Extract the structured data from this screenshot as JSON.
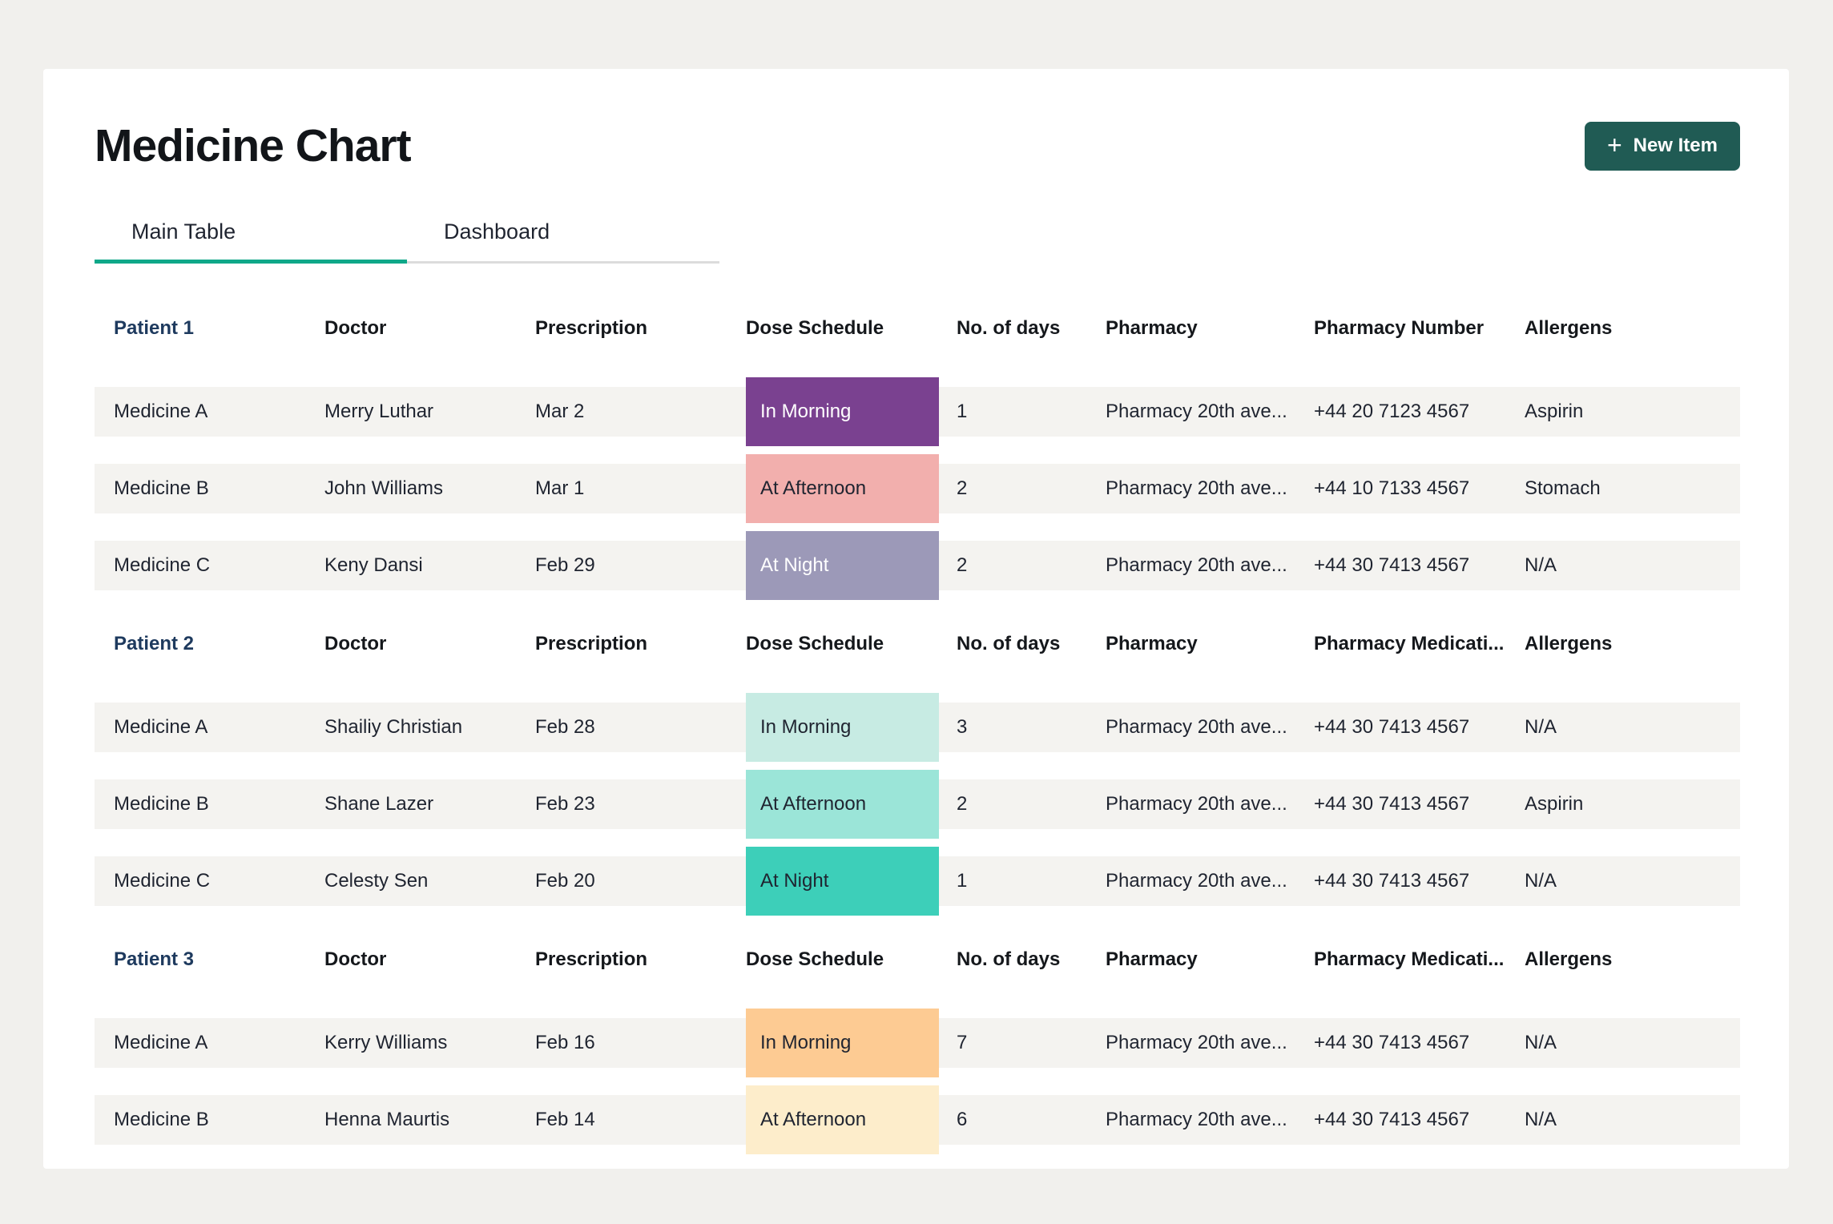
{
  "app": {
    "title": "Medicine Chart",
    "new_item": {
      "label": "New Item",
      "icon": "+"
    }
  },
  "tabs": [
    {
      "label": "Main Table",
      "active": true
    },
    {
      "label": "Dashboard",
      "active": false
    }
  ],
  "colors": {
    "page_bg": "#F1F0ED",
    "card_bg": "#FFFFFF",
    "row_stripe": "#F4F3F0",
    "accent_teal": "#0FA889",
    "button_bg": "#205B54",
    "patient_link": "#1E3A5E",
    "tab_inactive_line": "#DCDCDC"
  },
  "tables": [
    {
      "patient": "Patient 1",
      "columns": [
        "Doctor",
        "Prescription",
        "Dose Schedule",
        "No. of days",
        "Pharmacy",
        "Pharmacy Number",
        "Allergens"
      ],
      "rows": [
        {
          "medicine": "Medicine A",
          "doctor": "Merry Luthar",
          "prescription": "Mar 2",
          "dose": "In Morning",
          "dose_bg": "#7A4190",
          "dose_fg": "#FFFFFF",
          "days": "1",
          "pharmacy": "Pharmacy 20th ave...",
          "phone": "+44 20 7123 4567",
          "allergens": "Aspirin"
        },
        {
          "medicine": "Medicine B",
          "doctor": "John Williams",
          "prescription": "Mar 1",
          "dose": "At Afternoon",
          "dose_bg": "#F2AFAD",
          "dose_fg": "#1F2430",
          "days": "2",
          "pharmacy": "Pharmacy 20th ave...",
          "phone": "+44 10 7133 4567",
          "allergens": "Stomach"
        },
        {
          "medicine": "Medicine C",
          "doctor": "Keny Dansi",
          "prescription": "Feb 29",
          "dose": "At Night",
          "dose_bg": "#9C99B8",
          "dose_fg": "#FFFFFF",
          "days": "2",
          "pharmacy": "Pharmacy 20th ave...",
          "phone": "+44 30 7413 4567",
          "allergens": "N/A"
        }
      ]
    },
    {
      "patient": "Patient 2",
      "columns": [
        "Doctor",
        "Prescription",
        "Dose Schedule",
        "No. of days",
        "Pharmacy",
        "Pharmacy Medicati...",
        "Allergens"
      ],
      "rows": [
        {
          "medicine": "Medicine A",
          "doctor": "Shailiy Christian",
          "prescription": "Feb 28",
          "dose": "In Morning",
          "dose_bg": "#C7EBE3",
          "dose_fg": "#1F2430",
          "days": "3",
          "pharmacy": "Pharmacy 20th ave...",
          "phone": "+44 30 7413 4567",
          "allergens": "N/A"
        },
        {
          "medicine": "Medicine B",
          "doctor": "Shane Lazer",
          "prescription": "Feb 23",
          "dose": "At Afternoon",
          "dose_bg": "#9BE5D8",
          "dose_fg": "#1F2430",
          "days": "2",
          "pharmacy": "Pharmacy 20th ave...",
          "phone": "+44 30 7413 4567",
          "allergens": "Aspirin"
        },
        {
          "medicine": "Medicine C",
          "doctor": "Celesty Sen",
          "prescription": "Feb 20",
          "dose": "At Night",
          "dose_bg": "#3DCFB9",
          "dose_fg": "#1F2430",
          "days": "1",
          "pharmacy": "Pharmacy 20th ave...",
          "phone": "+44 30 7413 4567",
          "allergens": "N/A"
        }
      ]
    },
    {
      "patient": "Patient 3",
      "columns": [
        "Doctor",
        "Prescription",
        "Dose Schedule",
        "No. of days",
        "Pharmacy",
        "Pharmacy Medicati...",
        "Allergens"
      ],
      "rows": [
        {
          "medicine": "Medicine A",
          "doctor": "Kerry Williams",
          "prescription": "Feb 16",
          "dose": "In Morning",
          "dose_bg": "#FDCB93",
          "dose_fg": "#1F2430",
          "days": "7",
          "pharmacy": "Pharmacy 20th ave...",
          "phone": "+44 30 7413 4567",
          "allergens": "N/A"
        },
        {
          "medicine": "Medicine B",
          "doctor": "Henna Maurtis",
          "prescription": "Feb 14",
          "dose": "At Afternoon",
          "dose_bg": "#FDEDCB",
          "dose_fg": "#1F2430",
          "days": "6",
          "pharmacy": "Pharmacy 20th ave...",
          "phone": "+44 30 7413 4567",
          "allergens": "N/A"
        }
      ]
    }
  ]
}
